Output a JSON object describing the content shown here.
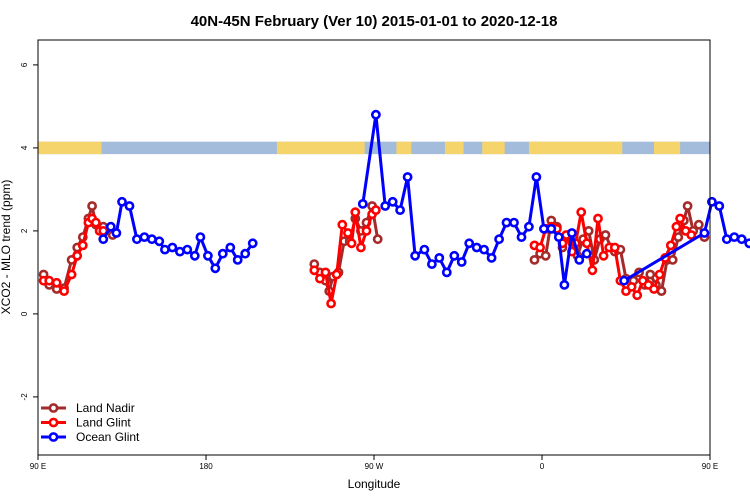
{
  "chart_data": {
    "type": "line",
    "title": "40N-45N February (Ver 10)   2015-01-01 to 2020-12-18",
    "xlabel": "Longitude",
    "ylabel": "XCO2 - MLO trend (ppm)",
    "xlim": [
      90,
      450
    ],
    "ylim": [
      -3.4,
      6.6
    ],
    "x_ticks": [
      {
        "value": 90,
        "label": "90 E"
      },
      {
        "value": 180,
        "label": "180"
      },
      {
        "value": 270,
        "label": "90 W"
      },
      {
        "value": 360,
        "label": "0"
      },
      {
        "value": 450,
        "label": "90 E"
      },
      {
        "value": 540,
        "label": "180"
      }
    ],
    "y_ticks": [
      -2,
      0,
      2,
      4,
      6
    ],
    "grid": false,
    "legend_position": "bottom-left",
    "surface_strip": {
      "y_range": [
        3.85,
        4.15
      ],
      "ocean_color": "#a3bcdc",
      "land_color": "#f6d46c",
      "land_segments": [
        [
          90,
          124
        ],
        [
          218,
          265
        ],
        [
          282,
          290
        ],
        [
          308,
          318
        ],
        [
          328,
          340
        ],
        [
          353,
          403
        ],
        [
          420,
          434
        ]
      ]
    },
    "series": [
      {
        "name": "Land Nadir",
        "color": "#a52a2a",
        "segments": [
          [
            [
              93,
              0.95
            ],
            [
              96,
              0.7
            ],
            [
              100,
              0.6
            ],
            [
              104,
              0.62
            ],
            [
              108,
              1.3
            ],
            [
              111,
              1.6
            ],
            [
              114,
              1.85
            ],
            [
              117,
              2.3
            ],
            [
              119,
              2.6
            ],
            [
              121,
              2.15
            ],
            [
              125,
              2.1
            ],
            [
              130,
              1.9
            ]
          ],
          [
            [
              238,
              1.2
            ],
            [
              241,
              1.0
            ],
            [
              244,
              0.8
            ],
            [
              246,
              0.55
            ],
            [
              248,
              0.9
            ],
            [
              251,
              1.0
            ],
            [
              254,
              1.75
            ],
            [
              257,
              1.75
            ],
            [
              260,
              2.3
            ],
            [
              263,
              2.0
            ],
            [
              266,
              2.2
            ],
            [
              269,
              2.6
            ],
            [
              272,
              1.8
            ]
          ],
          [
            [
              356,
              1.3
            ],
            [
              359,
              1.45
            ],
            [
              362,
              1.4
            ],
            [
              365,
              2.25
            ],
            [
              368,
              2.1
            ],
            [
              371,
              1.6
            ],
            [
              374,
              1.9
            ],
            [
              377,
              1.6
            ],
            [
              379,
              1.4
            ],
            [
              382,
              1.8
            ],
            [
              385,
              2.0
            ],
            [
              388,
              1.3
            ],
            [
              391,
              1.8
            ],
            [
              394,
              1.9
            ],
            [
              397,
              1.6
            ],
            [
              399,
              1.5
            ],
            [
              402,
              1.55
            ],
            [
              405,
              0.85
            ],
            [
              409,
              0.8
            ],
            [
              412,
              1.0
            ],
            [
              415,
              0.7
            ],
            [
              418,
              0.95
            ],
            [
              421,
              0.7
            ],
            [
              424,
              0.55
            ],
            [
              427,
              1.3
            ],
            [
              430,
              1.3
            ],
            [
              433,
              1.85
            ],
            [
              436,
              2.25
            ],
            [
              438,
              2.6
            ],
            [
              441,
              2.0
            ],
            [
              444,
              2.15
            ],
            [
              447,
              1.85
            ]
          ]
        ]
      },
      {
        "name": "Land Glint",
        "color": "#ff0000",
        "segments": [
          [
            [
              93,
              0.8
            ],
            [
              96,
              0.8
            ],
            [
              100,
              0.75
            ],
            [
              104,
              0.55
            ],
            [
              108,
              0.95
            ],
            [
              111,
              1.4
            ],
            [
              114,
              1.65
            ],
            [
              117,
              2.2
            ],
            [
              119,
              2.3
            ],
            [
              121,
              2.2
            ],
            [
              123,
              2.0
            ],
            [
              125,
              2.0
            ]
          ],
          [
            [
              238,
              1.05
            ],
            [
              241,
              0.85
            ],
            [
              244,
              1.0
            ],
            [
              247,
              0.25
            ],
            [
              250,
              0.95
            ],
            [
              253,
              2.15
            ],
            [
              256,
              1.95
            ],
            [
              258,
              1.7
            ],
            [
              260,
              2.45
            ],
            [
              263,
              1.6
            ],
            [
              266,
              2.0
            ],
            [
              269,
              2.4
            ],
            [
              271,
              2.5
            ]
          ],
          [
            [
              356,
              1.65
            ],
            [
              359,
              1.6
            ],
            [
              362,
              2.05
            ],
            [
              365,
              2.1
            ],
            [
              368,
              2.05
            ],
            [
              371,
              1.7
            ],
            [
              373,
              1.9
            ],
            [
              376,
              1.5
            ],
            [
              378,
              1.7
            ],
            [
              381,
              2.45
            ],
            [
              384,
              1.7
            ],
            [
              387,
              1.05
            ],
            [
              390,
              2.3
            ],
            [
              393,
              1.4
            ],
            [
              396,
              1.6
            ],
            [
              399,
              1.6
            ],
            [
              402,
              0.8
            ],
            [
              405,
              0.55
            ],
            [
              408,
              0.65
            ],
            [
              411,
              0.45
            ],
            [
              414,
              0.8
            ],
            [
              417,
              0.7
            ],
            [
              420,
              0.6
            ],
            [
              423,
              0.95
            ],
            [
              426,
              1.35
            ],
            [
              429,
              1.65
            ],
            [
              432,
              2.1
            ],
            [
              434,
              2.3
            ],
            [
              437,
              2.0
            ],
            [
              440,
              1.9
            ]
          ]
        ]
      },
      {
        "name": "Ocean Glint",
        "color": "#0000ff",
        "segments": [
          [
            [
              125,
              1.8
            ],
            [
              129,
              2.1
            ],
            [
              132,
              1.95
            ],
            [
              135,
              2.7
            ],
            [
              139,
              2.6
            ],
            [
              143,
              1.8
            ],
            [
              147,
              1.85
            ],
            [
              151,
              1.8
            ],
            [
              155,
              1.75
            ],
            [
              158,
              1.55
            ],
            [
              162,
              1.6
            ],
            [
              166,
              1.5
            ],
            [
              170,
              1.55
            ],
            [
              174,
              1.4
            ],
            [
              177,
              1.85
            ],
            [
              181,
              1.4
            ],
            [
              185,
              1.1
            ],
            [
              189,
              1.45
            ],
            [
              193,
              1.6
            ],
            [
              197,
              1.3
            ],
            [
              201,
              1.45
            ],
            [
              205,
              1.7
            ]
          ],
          [
            [
              264,
              2.65
            ],
            [
              271,
              4.8
            ],
            [
              276,
              2.6
            ],
            [
              280,
              2.7
            ],
            [
              284,
              2.5
            ],
            [
              288,
              3.3
            ],
            [
              292,
              1.4
            ],
            [
              297,
              1.55
            ],
            [
              301,
              1.2
            ],
            [
              305,
              1.35
            ],
            [
              309,
              1.0
            ],
            [
              313,
              1.4
            ],
            [
              317,
              1.25
            ],
            [
              321,
              1.7
            ],
            [
              325,
              1.6
            ],
            [
              329,
              1.55
            ],
            [
              333,
              1.35
            ],
            [
              337,
              1.8
            ],
            [
              341,
              2.2
            ],
            [
              345,
              2.2
            ],
            [
              349,
              1.85
            ],
            [
              353,
              2.1
            ],
            [
              357,
              3.3
            ],
            [
              361,
              2.05
            ],
            [
              365,
              2.05
            ],
            [
              369,
              1.85
            ],
            [
              372,
              0.7
            ],
            [
              376,
              1.95
            ],
            [
              380,
              1.3
            ],
            [
              384,
              1.45
            ]
          ],
          [
            [
              404,
              0.8
            ],
            [
              447,
              1.95
            ],
            [
              451,
              2.7
            ],
            [
              455,
              2.6
            ],
            [
              459,
              1.8
            ],
            [
              463,
              1.85
            ],
            [
              467,
              1.8
            ],
            [
              471,
              1.7
            ],
            [
              475,
              1.6
            ]
          ]
        ]
      }
    ]
  }
}
